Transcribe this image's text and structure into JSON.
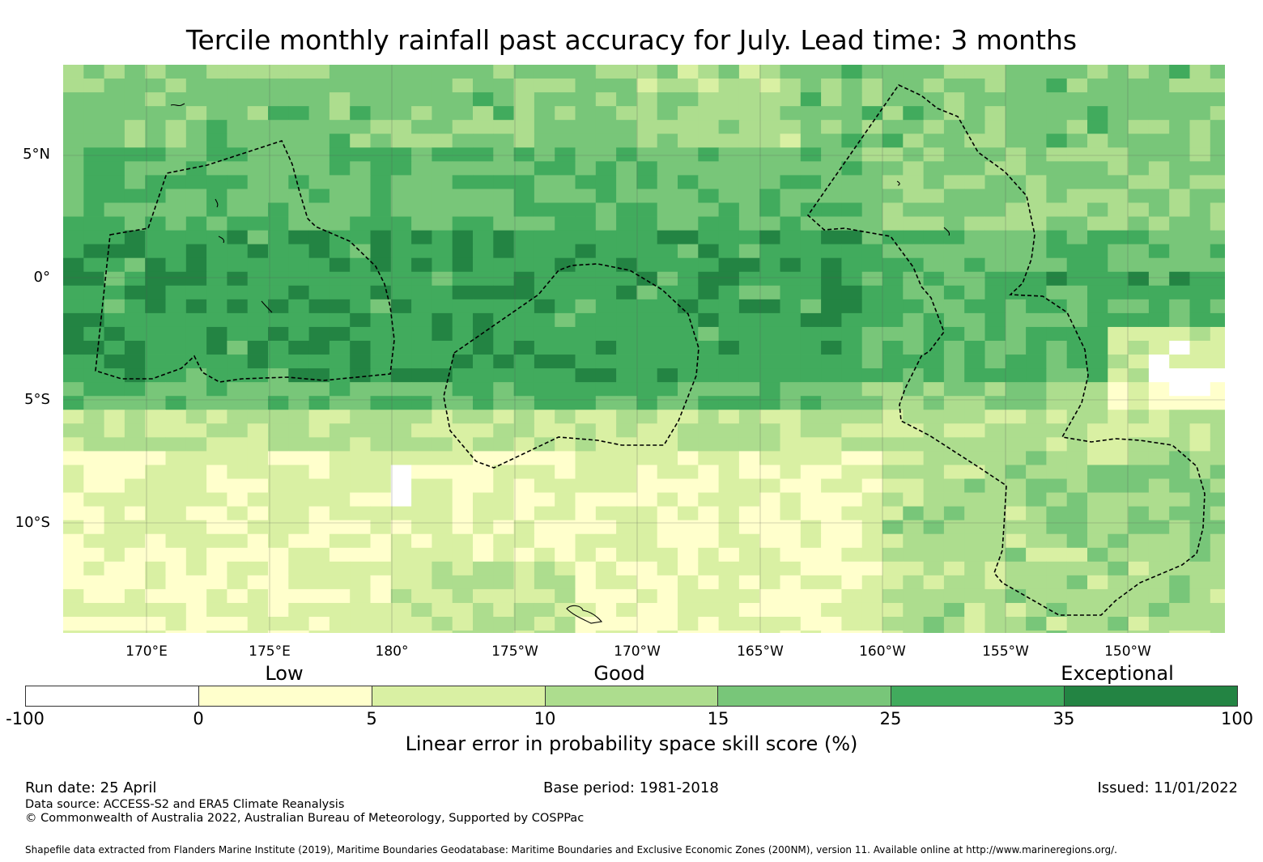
{
  "title": "Tercile monthly rainfall past accuracy for July. Lead time: 3 months",
  "map": {
    "lat_labels": [
      "5°N",
      "0°",
      "5°S",
      "10°S"
    ],
    "lon_labels": [
      "170°E",
      "175°E",
      "180°",
      "175°W",
      "170°W",
      "165°W",
      "160°W",
      "155°W",
      "150°W"
    ]
  },
  "colorbar": {
    "band_labels": [
      "Low",
      "Good",
      "Exceptional"
    ],
    "ticks": [
      "-100",
      "0",
      "5",
      "10",
      "15",
      "25",
      "35",
      "100"
    ],
    "colors": [
      "#ffffff",
      "#ffffcc",
      "#d9f0a3",
      "#addd8e",
      "#78c679",
      "#41ab5d",
      "#238443"
    ],
    "title": "Linear error in probability space skill score (%)"
  },
  "footer": {
    "run_date": "Run date: 25 April",
    "base_period": "Base period: 1981-2018",
    "issued": "Issued: 11/01/2022",
    "data_source": "Data source: ACCESS-S2 and ERA5 Climate Reanalysis",
    "copyright": "© Commonwealth of Australia 2022, Australian Bureau of Meteorology, Supported by COSPPac",
    "shapefile": "Shapefile data extracted from Flanders Marine Institute (2019), Maritime Boundaries Geodatabase: Maritime Boundaries and Exclusive Economic Zones (200NM), version 11. Available online at http://www.marineregions.org/."
  }
}
